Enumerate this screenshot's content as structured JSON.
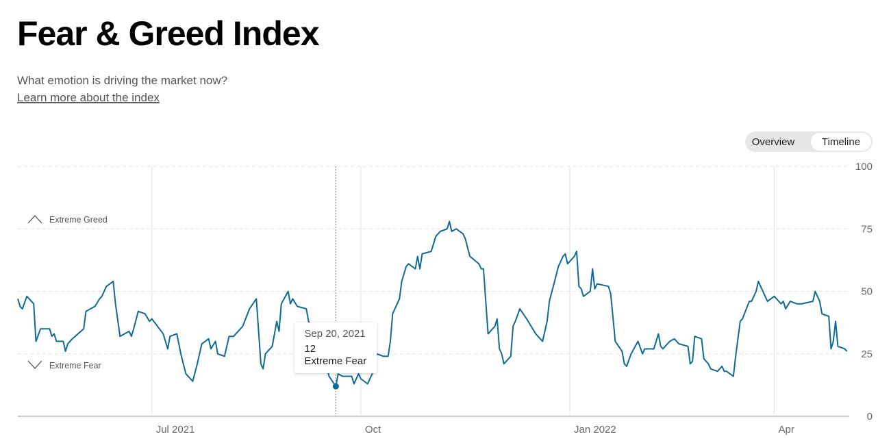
{
  "chart_data": {
    "type": "line",
    "title": "Fear & Greed Index",
    "subtitle": "What emotion is driving the market now?",
    "link": "Learn more about the index",
    "view_options": [
      "Overview",
      "Timeline"
    ],
    "selected_view": "Timeline",
    "annotations": [
      "Extreme Greed",
      "Extreme Fear"
    ],
    "color": "#0f6a96",
    "grid": true,
    "xlim": [
      "2021-05-03",
      "2022-05-04"
    ],
    "xticks": [
      {
        "value": "2021-07-01",
        "label": "Jul 2021"
      },
      {
        "value": "2021-10-01",
        "label": "Oct"
      },
      {
        "value": "2022-01-01",
        "label": "Jan 2022"
      },
      {
        "value": "2022-04-01",
        "label": "Apr"
      }
    ],
    "ylim": [
      0,
      100
    ],
    "yticks": [
      0,
      25,
      50,
      75,
      100
    ],
    "tooltip": {
      "x": "2021-09-20",
      "x_label": "Sep 20, 2021",
      "label": "Extreme Fear"
    },
    "x": [
      "2021-05-03",
      "2021-05-04",
      "2021-05-05",
      "2021-05-07",
      "2021-05-09",
      "2021-05-10",
      "2021-05-11",
      "2021-05-13",
      "2021-05-17",
      "2021-05-18",
      "2021-05-19",
      "2021-05-20",
      "2021-05-23",
      "2021-05-24",
      "2021-05-25",
      "2021-05-27",
      "2021-06-01",
      "2021-06-02",
      "2021-06-04",
      "2021-06-06",
      "2021-06-08",
      "2021-06-09",
      "2021-06-11",
      "2021-06-14",
      "2021-06-15",
      "2021-06-17",
      "2021-06-21",
      "2021-06-22",
      "2021-06-23",
      "2021-06-25",
      "2021-06-28",
      "2021-06-30",
      "2021-07-01",
      "2021-07-06",
      "2021-07-08",
      "2021-07-09",
      "2021-07-12",
      "2021-07-14",
      "2021-07-16",
      "2021-07-19",
      "2021-07-21",
      "2021-07-23",
      "2021-07-26",
      "2021-07-27",
      "2021-07-29",
      "2021-07-30",
      "2021-08-02",
      "2021-08-04",
      "2021-08-06",
      "2021-08-10",
      "2021-08-13",
      "2021-08-16",
      "2021-08-18",
      "2021-08-19",
      "2021-08-20",
      "2021-08-23",
      "2021-08-25",
      "2021-08-26",
      "2021-08-27",
      "2021-08-30",
      "2021-08-31",
      "2021-09-01",
      "2021-09-03",
      "2021-09-07",
      "2021-09-08",
      "2021-09-13",
      "2021-09-16",
      "2021-09-17",
      "2021-09-20",
      "2021-09-21",
      "2021-09-23",
      "2021-09-24",
      "2021-09-27",
      "2021-09-28",
      "2021-09-30",
      "2021-10-01",
      "2021-10-04",
      "2021-10-06",
      "2021-10-08",
      "2021-10-11",
      "2021-10-13",
      "2021-10-14",
      "2021-10-15",
      "2021-10-18",
      "2021-10-19",
      "2021-10-21",
      "2021-10-22",
      "2021-10-25",
      "2021-10-26",
      "2021-10-27",
      "2021-10-28",
      "2021-11-01",
      "2021-11-03",
      "2021-11-05",
      "2021-11-08",
      "2021-11-09",
      "2021-11-10",
      "2021-11-12",
      "2021-11-15",
      "2021-11-16",
      "2021-11-18",
      "2021-11-22",
      "2021-11-23",
      "2021-11-24",
      "2021-11-26",
      "2021-11-29",
      "2021-11-30",
      "2021-12-01",
      "2021-12-02",
      "2021-12-03",
      "2021-12-06",
      "2021-12-07",
      "2021-12-08",
      "2021-12-10",
      "2021-12-13",
      "2021-12-15",
      "2021-12-17",
      "2021-12-20",
      "2021-12-22",
      "2021-12-23",
      "2021-12-27",
      "2021-12-29",
      "2021-12-30",
      "2021-12-31",
      "2022-01-03",
      "2022-01-04",
      "2022-01-05",
      "2022-01-06",
      "2022-01-07",
      "2022-01-10",
      "2022-01-11",
      "2022-01-12",
      "2022-01-13",
      "2022-01-18",
      "2022-01-19",
      "2022-01-21",
      "2022-01-24",
      "2022-01-25",
      "2022-01-26",
      "2022-01-28",
      "2022-01-31",
      "2022-02-02",
      "2022-02-03",
      "2022-02-07",
      "2022-02-09",
      "2022-02-10",
      "2022-02-11",
      "2022-02-14",
      "2022-02-16",
      "2022-02-18",
      "2022-02-22",
      "2022-02-23",
      "2022-02-24",
      "2022-02-25",
      "2022-02-28",
      "2022-03-01",
      "2022-03-03",
      "2022-03-04",
      "2022-03-07",
      "2022-03-09",
      "2022-03-10",
      "2022-03-11",
      "2022-03-14",
      "2022-03-15",
      "2022-03-16",
      "2022-03-17",
      "2022-03-18",
      "2022-03-21",
      "2022-03-22",
      "2022-03-24",
      "2022-03-25",
      "2022-03-28",
      "2022-03-29",
      "2022-04-01",
      "2022-04-04",
      "2022-04-05",
      "2022-04-06",
      "2022-04-08",
      "2022-04-11",
      "2022-04-13",
      "2022-04-18",
      "2022-04-19",
      "2022-04-20",
      "2022-04-21",
      "2022-04-22",
      "2022-04-25",
      "2022-04-26",
      "2022-04-27",
      "2022-04-28",
      "2022-04-29",
      "2022-05-02",
      "2022-05-03"
    ],
    "values": [
      47,
      44,
      43,
      48,
      46,
      45,
      30,
      35,
      35,
      32,
      33,
      30,
      30,
      26,
      29,
      31,
      35,
      42,
      43,
      44,
      47,
      48,
      52,
      54,
      45,
      32,
      34,
      32,
      35,
      42,
      41,
      38,
      39,
      33,
      27,
      32,
      33,
      24,
      17,
      14,
      21,
      29,
      31,
      27,
      30,
      25,
      24,
      32,
      32,
      36,
      43,
      47,
      21,
      19,
      25,
      28,
      38,
      34,
      45,
      50,
      45,
      47,
      44,
      43,
      38,
      28,
      20,
      16,
      12,
      17,
      16,
      16,
      16,
      13,
      17,
      15,
      13,
      17,
      25,
      24,
      24,
      30,
      41,
      47,
      54,
      60,
      61,
      59,
      64,
      59,
      65,
      66,
      72,
      74,
      75,
      78,
      74,
      75,
      73,
      71,
      64,
      61,
      59,
      59,
      33,
      36,
      39,
      27,
      25,
      21,
      24,
      36,
      38,
      43,
      39,
      36,
      33,
      30,
      38,
      46,
      60,
      64,
      65,
      61,
      64,
      66,
      52,
      51,
      48,
      50,
      59,
      51,
      53,
      52,
      49,
      30,
      26,
      21,
      20,
      25,
      30,
      25,
      27,
      27,
      33,
      28,
      27,
      30,
      31,
      29,
      28,
      21,
      22,
      32,
      31,
      23,
      21,
      19,
      18,
      20,
      18,
      18,
      16,
      24,
      31,
      38,
      39,
      46,
      46,
      50,
      54,
      48,
      46,
      48,
      45,
      46,
      43,
      46,
      45,
      45,
      46,
      50,
      48,
      46,
      41,
      40,
      27,
      30,
      38,
      28,
      27,
      26
    ]
  }
}
